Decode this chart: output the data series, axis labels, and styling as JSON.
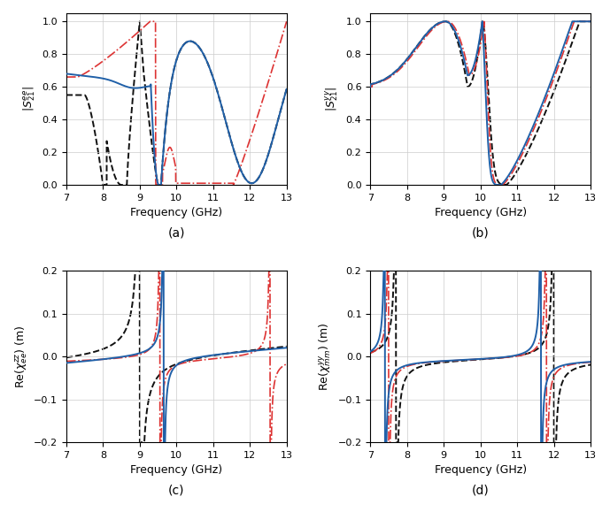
{
  "fig_width": 6.89,
  "fig_height": 5.79,
  "dpi": 100,
  "ylabel_a": "$|S_{21}^{ee}|$",
  "ylabel_b": "$|S_{21}^{yy}|$",
  "ylabel_c": "$\\mathrm{Re}(\\chi_{ee}^{zz})$ (m)",
  "ylabel_d": "$\\mathrm{Re}(\\chi_{mm}^{yy})$ (m)",
  "xlabel": "Frequency (GHz)",
  "subtitle_a": "(a)",
  "subtitle_b": "(b)",
  "subtitle_c": "(c)",
  "subtitle_d": "(d)",
  "blue_color": "#2060a8",
  "red_color": "#dd3333",
  "black_color": "#111111"
}
